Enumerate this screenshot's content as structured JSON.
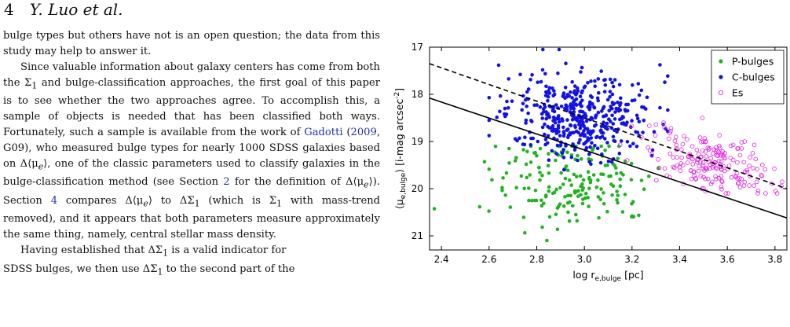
{
  "header": {
    "page_number": "4",
    "authors": "Y. Luo et al."
  },
  "body_text": {
    "p1": "bulge types but others have not is an open question; the data from this study may help to answer it.",
    "p2a": "Since valuable information about galaxy centers has come from both the Σ",
    "p2b": " and bulge-classification approaches, the first goal of this paper is to see whether the two approaches agree. To accomplish this, a sample of objects is needed that has been classified both ways. Fortunately, such a sample is available from the work of ",
    "gadotti": "Gadotti",
    "year": "2009",
    "p2c": ", G09), who measured bulge types for nearly 1000 SDSS galaxies based on Δ⟨μ",
    "p2d": "⟩, one of the classic parameters used to classify galaxies in the bulge-classification method (see Section ",
    "sec2": "2",
    "p2e": " for the definition of Δ⟨μ",
    "p2f": "⟩). Section ",
    "sec4": "4",
    "p2g": " compares Δ⟨μ",
    "p2h": "⟩ to ΔΣ",
    "p2i": " (which is Σ",
    "p2j": " with mass-trend removed), and it appears that both parameters measure approximately the same thing, namely, central stellar mass density.",
    "p3a": "Having established that ΔΣ",
    "p3b": " is a valid indicator for",
    "p3c": "SDSS bulges, we then use ΔΣ",
    "p3d": " to the second part of the"
  },
  "chart_data": {
    "type": "scatter",
    "xlabel": "log r",
    "xlabel_sub": "e,bulge",
    "xlabel_unit": " [pc]",
    "ylabel": "⟨μ",
    "ylabel_sub": "e,bulge",
    "ylabel_unit": "⟩ [i-mag arcsec",
    "ylabel_sup": "-2",
    "ylabel_close": "]",
    "xlim": [
      2.35,
      3.85
    ],
    "ylim": [
      17,
      21.3
    ],
    "y_inverted": true,
    "xticks": [
      "2.4",
      "2.6",
      "2.8",
      "3.0",
      "3.2",
      "3.4",
      "3.6",
      "3.8"
    ],
    "yticks": [
      "17",
      "18",
      "19",
      "20",
      "21"
    ],
    "legend_position": "top-right",
    "series": [
      {
        "name": "P-bulges",
        "color": "#22b322",
        "marker": "filled",
        "center": [
          2.95,
          19.85
        ],
        "spread": [
          0.17,
          0.5
        ],
        "xrange": [
          2.37,
          3.32
        ],
        "yrange": [
          19.1,
          21.25
        ],
        "count": 185
      },
      {
        "name": "C-bulges",
        "color": "#1212e6",
        "marker": "filled",
        "center": [
          2.98,
          18.45
        ],
        "spread": [
          0.15,
          0.42
        ],
        "xrange": [
          2.6,
          3.35
        ],
        "yrange": [
          17.05,
          19.6
        ],
        "count": 430
      },
      {
        "name": "Es",
        "color": "#e020e0",
        "marker": "open",
        "center": [
          3.52,
          19.45
        ],
        "spread": [
          0.13,
          0.33
        ],
        "xrange": [
          3.15,
          3.84
        ],
        "yrange": [
          18.5,
          20.1
        ],
        "count": 200
      }
    ],
    "lines": [
      {
        "style": "dashed",
        "x": [
          2.35,
          3.85
        ],
        "y": [
          17.35,
          20.0
        ]
      },
      {
        "style": "solid",
        "x": [
          2.35,
          3.85
        ],
        "y": [
          18.08,
          20.62
        ]
      }
    ]
  }
}
